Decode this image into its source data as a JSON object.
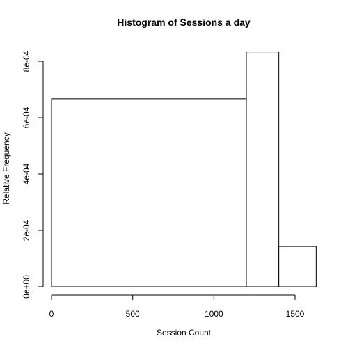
{
  "chart_data": {
    "type": "bar",
    "title": "Histogram of Sessions a day",
    "xlabel": "Session Count",
    "ylabel": "Relative Frequency",
    "x_ticks": [
      0,
      500,
      1000,
      1500
    ],
    "x_tick_labels": [
      "0",
      "500",
      "1000",
      "1500"
    ],
    "y_ticks": [
      0,
      0.0002,
      0.0004,
      0.0006,
      0.0008
    ],
    "y_tick_labels": [
      "0e+00",
      "2e-04",
      "4e-04",
      "6e-04",
      "8e-04"
    ],
    "xlim": [
      0,
      1640
    ],
    "ylim": [
      0,
      0.000835
    ],
    "bins": [
      {
        "x_start": 0,
        "x_end": 1200,
        "value": 0.000667
      },
      {
        "x_start": 1200,
        "x_end": 1400,
        "value": 0.000833
      },
      {
        "x_start": 1400,
        "x_end": 1630,
        "value": 0.000143
      }
    ],
    "grid": false,
    "legend": "none"
  }
}
